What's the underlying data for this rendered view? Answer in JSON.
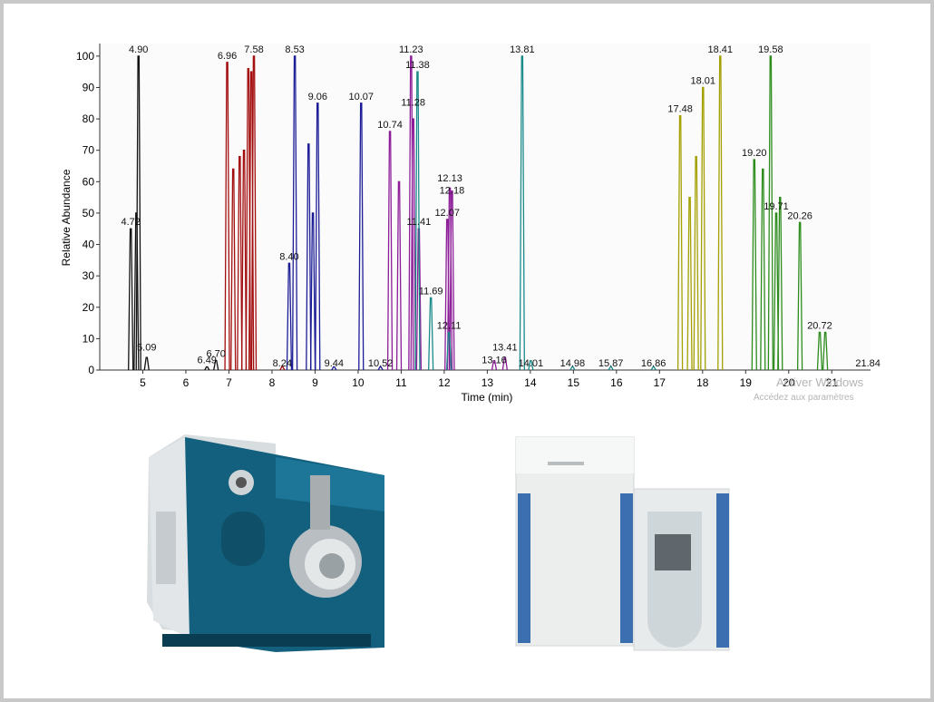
{
  "chart_data": {
    "type": "line",
    "xlabel": "Time (min)",
    "ylabel": "Relative Abundance",
    "xlim": [
      4.0,
      21.9
    ],
    "ylim": [
      0,
      104
    ],
    "xticks": [
      5,
      6,
      7,
      8,
      9,
      10,
      11,
      12,
      13,
      14,
      15,
      16,
      17,
      18,
      19,
      20,
      21
    ],
    "yticks": [
      0,
      10,
      20,
      30,
      40,
      50,
      60,
      70,
      80,
      90,
      100
    ],
    "series": [
      {
        "color": "#111111",
        "x": [
          4.72,
          4.85,
          4.9,
          5.09,
          6.49,
          6.7
        ],
        "values": [
          45,
          50,
          100,
          4,
          1,
          3
        ]
      },
      {
        "color": "#a30d0d",
        "x": [
          6.96,
          7.1,
          7.25,
          7.35,
          7.45,
          7.52,
          7.58,
          8.24
        ],
        "values": [
          98,
          64,
          68,
          70,
          96,
          95,
          100,
          1
        ]
      },
      {
        "color": "#1c1c96",
        "x": [
          8.4,
          8.53,
          8.85,
          8.95,
          9.06,
          9.44,
          10.07,
          10.52
        ],
        "values": [
          34,
          100,
          72,
          50,
          85,
          1,
          85,
          1
        ]
      },
      {
        "color": "#8c1c98",
        "x": [
          10.74,
          10.95,
          11.23,
          11.28,
          11.41,
          12.07,
          12.13,
          12.18,
          13.16,
          13.41
        ],
        "values": [
          76,
          60,
          100,
          80,
          45,
          48,
          58,
          57,
          3,
          4
        ]
      },
      {
        "color": "#1a8a8a",
        "x": [
          11.38,
          11.69,
          12.11,
          13.81,
          14.01,
          14.98,
          15.87,
          16.86
        ],
        "values": [
          95,
          23,
          12,
          100,
          3,
          1,
          1,
          1
        ]
      },
      {
        "color": "#a3a000",
        "x": [
          17.48,
          17.7,
          17.85,
          18.01,
          18.41
        ],
        "values": [
          81,
          55,
          68,
          90,
          100
        ]
      },
      {
        "color": "#2c8c1c",
        "x": [
          19.2,
          19.4,
          19.58,
          19.71,
          19.8,
          20.26,
          20.72,
          20.85
        ],
        "values": [
          67,
          64,
          100,
          50,
          55,
          47,
          12,
          12
        ]
      }
    ],
    "annotations": [
      {
        "x": 4.72,
        "y": 45,
        "text": "4.72"
      },
      {
        "x": 4.9,
        "y": 100,
        "text": "4.90"
      },
      {
        "x": 5.09,
        "y": 5,
        "text": "5.09"
      },
      {
        "x": 6.49,
        "y": 1,
        "text": "6.49"
      },
      {
        "x": 6.7,
        "y": 3,
        "text": "6.70"
      },
      {
        "x": 6.96,
        "y": 98,
        "text": "6.96"
      },
      {
        "x": 7.58,
        "y": 100,
        "text": "7.58"
      },
      {
        "x": 8.24,
        "y": 0,
        "text": "8.24"
      },
      {
        "x": 8.4,
        "y": 34,
        "text": "8.40"
      },
      {
        "x": 8.53,
        "y": 100,
        "text": "8.53"
      },
      {
        "x": 9.06,
        "y": 85,
        "text": "9.06"
      },
      {
        "x": 9.44,
        "y": 0,
        "text": "9.44"
      },
      {
        "x": 10.07,
        "y": 85,
        "text": "10.07"
      },
      {
        "x": 10.52,
        "y": 0,
        "text": "10.52"
      },
      {
        "x": 10.74,
        "y": 76,
        "text": "10.74"
      },
      {
        "x": 11.28,
        "y": 83,
        "text": "11.28"
      },
      {
        "x": 11.23,
        "y": 100,
        "text": "11.23"
      },
      {
        "x": 11.38,
        "y": 95,
        "text": "11.38"
      },
      {
        "x": 11.41,
        "y": 45,
        "text": "11.41"
      },
      {
        "x": 11.69,
        "y": 23,
        "text": "11.69"
      },
      {
        "x": 12.07,
        "y": 48,
        "text": "12.07"
      },
      {
        "x": 12.13,
        "y": 59,
        "text": "12.13"
      },
      {
        "x": 12.18,
        "y": 55,
        "text": "12.18"
      },
      {
        "x": 12.11,
        "y": 12,
        "text": "12.11"
      },
      {
        "x": 13.16,
        "y": 1,
        "text": "13.16"
      },
      {
        "x": 13.41,
        "y": 5,
        "text": "13.41"
      },
      {
        "x": 13.81,
        "y": 100,
        "text": "13.81"
      },
      {
        "x": 14.01,
        "y": 0,
        "text": "14.01"
      },
      {
        "x": 14.98,
        "y": 0,
        "text": "14.98"
      },
      {
        "x": 15.87,
        "y": 0,
        "text": "15.87"
      },
      {
        "x": 16.86,
        "y": 0,
        "text": "16.86"
      },
      {
        "x": 17.48,
        "y": 81,
        "text": "17.48"
      },
      {
        "x": 18.01,
        "y": 90,
        "text": "18.01"
      },
      {
        "x": 18.41,
        "y": 100,
        "text": "18.41"
      },
      {
        "x": 19.2,
        "y": 67,
        "text": "19.20"
      },
      {
        "x": 19.58,
        "y": 100,
        "text": "19.58"
      },
      {
        "x": 19.71,
        "y": 50,
        "text": "19.71"
      },
      {
        "x": 20.26,
        "y": 47,
        "text": "20.26"
      },
      {
        "x": 20.72,
        "y": 12,
        "text": "20.72"
      },
      {
        "x": 21.84,
        "y": 0,
        "text": "21.84"
      }
    ]
  },
  "watermark": {
    "line1": "Activer Windows",
    "line2": "Accédez aux paramètres"
  }
}
